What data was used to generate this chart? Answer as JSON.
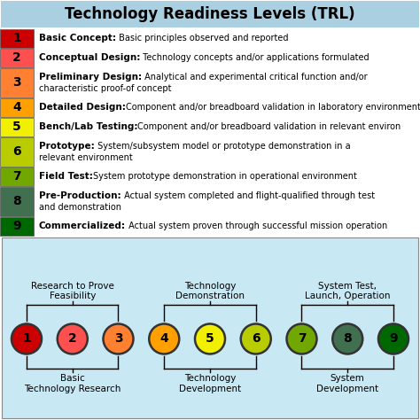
{
  "title": "Technology Readiness Levels (TRL)",
  "title_bg": "#aacfe0",
  "bg_color": "#ffffff",
  "levels": [
    {
      "num": "1",
      "color": "#cc0000",
      "bold": "Basic Concept:",
      "text": " Basic principles observed and reported",
      "lines": 1
    },
    {
      "num": "2",
      "color": "#ff5050",
      "bold": "Conceptual Design:",
      "text": " Technology concepts and/or applications formulated",
      "lines": 1
    },
    {
      "num": "3",
      "color": "#ff8030",
      "bold": "Preliminary Design:",
      "text": " Analytical and experimental critical function and/or\ncharacteristic proof-of concept",
      "lines": 2
    },
    {
      "num": "4",
      "color": "#ffa000",
      "bold": "Detailed Design:",
      "text": "Component and/or breadboard validation in laboratory environment",
      "lines": 1
    },
    {
      "num": "5",
      "color": "#f0f000",
      "bold": "Bench/Lab Testing:",
      "text": "Component and/or breadboard validation in relevant environ",
      "lines": 1
    },
    {
      "num": "6",
      "color": "#b8cc00",
      "bold": "Prototype:",
      "text": " System/subsystem model or prototype demonstration in a\nrelevant environment",
      "lines": 2
    },
    {
      "num": "7",
      "color": "#70a800",
      "bold": "Field Test:",
      "text": "System prototype demonstration in operational environment",
      "lines": 1
    },
    {
      "num": "8",
      "color": "#407050",
      "bold": "Pre-Production:",
      "text": " Actual system completed and flight-qualified through test\nand demonstration",
      "lines": 2
    },
    {
      "num": "9",
      "color": "#006800",
      "bold": "Commercialized:",
      "text": " Actual system proven through successful mission operation",
      "lines": 1
    }
  ],
  "circle_colors": [
    "#cc0000",
    "#ff5050",
    "#ff8030",
    "#ffa000",
    "#f0f000",
    "#b8cc00",
    "#70a800",
    "#407050",
    "#006800"
  ],
  "bottom_bg": "#c8e8f4",
  "group_defs": [
    {
      "circles": [
        0,
        2
      ],
      "top_label": "Research to Prove\nFeasibility",
      "bot_label": "Basic\nTechnology Research"
    },
    {
      "circles": [
        3,
        5
      ],
      "top_label": "Technology\nDemonstration",
      "bot_label": "Technology\nDevelopment"
    },
    {
      "circles": [
        6,
        8
      ],
      "top_label": "System Test,\nLaunch, Operation",
      "bot_label": "System\nDevelopment"
    }
  ]
}
